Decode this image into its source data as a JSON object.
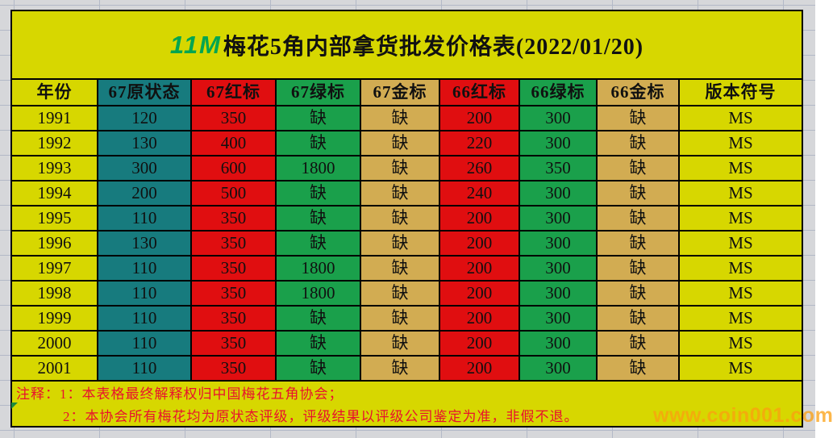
{
  "watermark": "www.coin001.com",
  "title": {
    "prefix": "11M",
    "text": "梅花5角内部拿货批发价格表(2022/01/20)"
  },
  "colors": {
    "yellow": "#d7d700",
    "teal": "#177b7e",
    "red": "#e00e10",
    "green": "#1aa04b",
    "gold": "#d2ac52",
    "title_prefix_green": "#00a551",
    "note_red": "#e8112e",
    "watermark_orange": "#fca010"
  },
  "table": {
    "columns": [
      {
        "label": "年份",
        "color_key": "yellow"
      },
      {
        "label": "67原状态",
        "color_key": "teal"
      },
      {
        "label": "67红标",
        "color_key": "red"
      },
      {
        "label": "67绿标",
        "color_key": "green"
      },
      {
        "label": "67金标",
        "color_key": "gold"
      },
      {
        "label": "66红标",
        "color_key": "red"
      },
      {
        "label": "66绿标",
        "color_key": "green"
      },
      {
        "label": "66金标",
        "color_key": "gold"
      },
      {
        "label": "版本符号",
        "color_key": "yellow"
      }
    ],
    "rows": [
      [
        "1991",
        "120",
        "350",
        "缺",
        "缺",
        "200",
        "300",
        "缺",
        "MS"
      ],
      [
        "1992",
        "130",
        "400",
        "缺",
        "缺",
        "220",
        "300",
        "缺",
        "MS"
      ],
      [
        "1993",
        "300",
        "600",
        "1800",
        "缺",
        "260",
        "350",
        "缺",
        "MS"
      ],
      [
        "1994",
        "200",
        "500",
        "缺",
        "缺",
        "240",
        "300",
        "缺",
        "MS"
      ],
      [
        "1995",
        "110",
        "350",
        "缺",
        "缺",
        "200",
        "300",
        "缺",
        "MS"
      ],
      [
        "1996",
        "130",
        "350",
        "缺",
        "缺",
        "200",
        "300",
        "缺",
        "MS"
      ],
      [
        "1997",
        "110",
        "350",
        "1800",
        "缺",
        "200",
        "300",
        "缺",
        "MS"
      ],
      [
        "1998",
        "110",
        "350",
        "1800",
        "缺",
        "200",
        "300",
        "缺",
        "MS"
      ],
      [
        "1999",
        "110",
        "350",
        "缺",
        "缺",
        "200",
        "300",
        "缺",
        "MS"
      ],
      [
        "2000",
        "110",
        "350",
        "缺",
        "缺",
        "200",
        "300",
        "缺",
        "MS"
      ],
      [
        "2001",
        "110",
        "350",
        "缺",
        "缺",
        "200",
        "300",
        "缺",
        "MS"
      ]
    ]
  },
  "notes": {
    "line1": "注释：1：本表格最终解释权归中国梅花五角协会；",
    "line2": "2：本协会所有梅花均为原状态评级，评级结果以评级公司鉴定为准，非假不退。"
  }
}
